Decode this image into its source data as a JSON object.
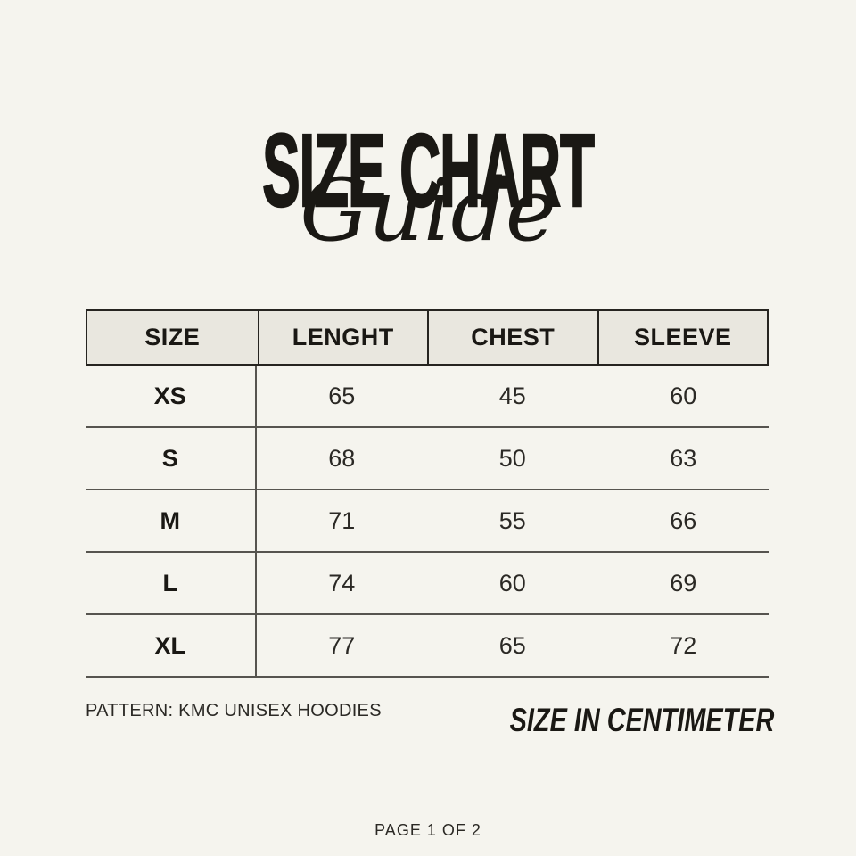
{
  "title": {
    "main": "SIZE CHART",
    "script": "Guide"
  },
  "size_table": {
    "headers": [
      "SIZE",
      "LENGHT",
      "CHEST",
      "SLEEVE"
    ],
    "rows": [
      {
        "size": "XS",
        "length": "65",
        "chest": "45",
        "sleeve": "60"
      },
      {
        "size": "S",
        "length": "68",
        "chest": "50",
        "sleeve": "63"
      },
      {
        "size": "M",
        "length": "71",
        "chest": "55",
        "sleeve": "66"
      },
      {
        "size": "L",
        "length": "74",
        "chest": "60",
        "sleeve": "69"
      },
      {
        "size": "XL",
        "length": "77",
        "chest": "65",
        "sleeve": "72"
      }
    ]
  },
  "footer": {
    "pattern": "PATTERN: KMC UNISEX HOODIES",
    "unit_note": "SIZE IN CENTIMETER",
    "page_indicator": "PAGE 1 OF 2"
  },
  "colors": {
    "page_bg": "#F5F4EE",
    "header_bg": "#E9E7DF",
    "text": "#1A1814",
    "muted_text": "#2B2925",
    "border": "#262420",
    "line": "#56544F"
  }
}
